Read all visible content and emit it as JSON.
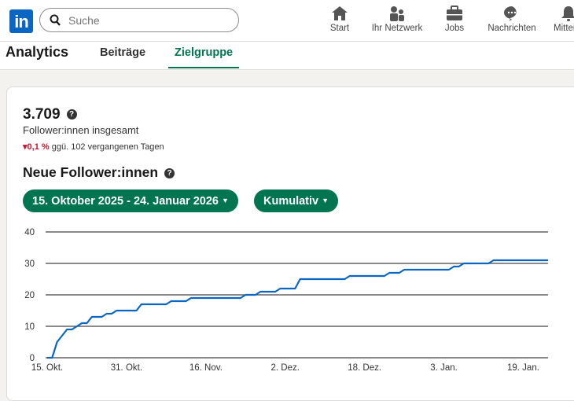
{
  "header": {
    "logo": "in",
    "search_placeholder": "Suche",
    "nav": [
      {
        "label": "Start",
        "icon": "home-icon"
      },
      {
        "label": "Ihr Netzwerk",
        "icon": "network-icon"
      },
      {
        "label": "Jobs",
        "icon": "briefcase-icon"
      },
      {
        "label": "Nachrichten",
        "icon": "messaging-icon"
      },
      {
        "label": "Mitteilu",
        "icon": "bell-icon"
      }
    ]
  },
  "page": {
    "title": "Analytics",
    "tabs": [
      {
        "label": "Beiträge"
      },
      {
        "label": "Zielgruppe",
        "active": true
      }
    ]
  },
  "summary": {
    "total": "3.709",
    "total_label": "Follower:innen insgesamt",
    "change": "0,1 %",
    "change_text": "ggü. 102 vergangenen Tagen",
    "help": "?"
  },
  "section": {
    "title": "Neue Follower:innen",
    "date_range": "15. Oktober 2025 - 24. Januar 2026",
    "mode": "Kumulativ"
  },
  "colors": {
    "accent": "#01754f",
    "line": "#0a66c2",
    "negative": "#cb112d"
  },
  "chart_data": {
    "type": "line",
    "ylim": [
      0,
      40
    ],
    "yticks": [
      "0",
      "10",
      "20",
      "30",
      "40"
    ],
    "xlim": [
      "2025-10-15",
      "2026-01-24"
    ],
    "xticks": [
      {
        "date": "2025-10-15",
        "label": "15. Okt."
      },
      {
        "date": "2025-10-31",
        "label": "31. Okt."
      },
      {
        "date": "2025-11-16",
        "label": "16. Nov."
      },
      {
        "date": "2025-12-02",
        "label": "2. Dez."
      },
      {
        "date": "2025-12-18",
        "label": "18. Dez."
      },
      {
        "date": "2026-01-03",
        "label": "3. Jan."
      },
      {
        "date": "2026-01-19",
        "label": "19. Jan."
      }
    ],
    "grid": true,
    "points": [
      [
        "2025-10-15",
        0
      ],
      [
        "2025-10-16",
        0
      ],
      [
        "2025-10-17",
        5
      ],
      [
        "2025-10-19",
        9
      ],
      [
        "2025-10-20",
        9
      ],
      [
        "2025-10-22",
        11
      ],
      [
        "2025-10-23",
        11
      ],
      [
        "2025-10-24",
        13
      ],
      [
        "2025-10-26",
        13
      ],
      [
        "2025-10-27",
        14
      ],
      [
        "2025-10-28",
        14
      ],
      [
        "2025-10-29",
        15
      ],
      [
        "2025-11-02",
        15
      ],
      [
        "2025-11-03",
        17
      ],
      [
        "2025-11-08",
        17
      ],
      [
        "2025-11-09",
        18
      ],
      [
        "2025-11-12",
        18
      ],
      [
        "2025-11-13",
        19
      ],
      [
        "2025-11-23",
        19
      ],
      [
        "2025-11-24",
        20
      ],
      [
        "2025-11-26",
        20
      ],
      [
        "2025-11-27",
        21
      ],
      [
        "2025-11-30",
        21
      ],
      [
        "2025-12-01",
        22
      ],
      [
        "2025-12-04",
        22
      ],
      [
        "2025-12-05",
        25
      ],
      [
        "2025-12-14",
        25
      ],
      [
        "2025-12-15",
        26
      ],
      [
        "2025-12-22",
        26
      ],
      [
        "2025-12-23",
        27
      ],
      [
        "2025-12-25",
        27
      ],
      [
        "2025-12-26",
        28
      ],
      [
        "2026-01-04",
        28
      ],
      [
        "2026-01-05",
        29
      ],
      [
        "2026-01-06",
        29
      ],
      [
        "2026-01-07",
        30
      ],
      [
        "2026-01-12",
        30
      ],
      [
        "2026-01-13",
        31
      ],
      [
        "2026-01-24",
        31
      ]
    ]
  }
}
